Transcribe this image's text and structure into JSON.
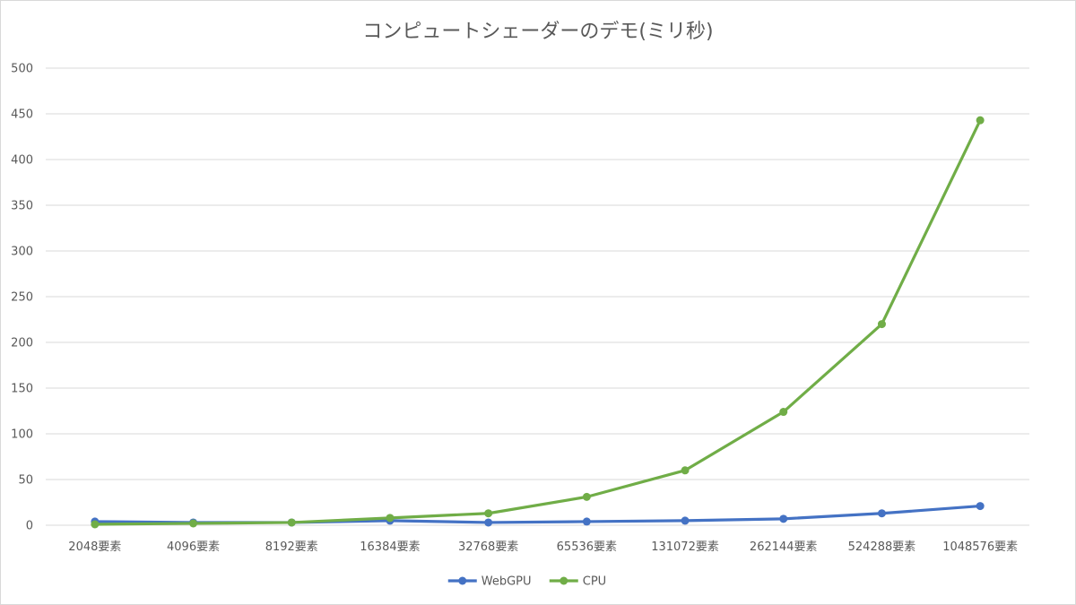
{
  "chart_data": {
    "type": "line",
    "title": "コンピュートシェーダーのデモ(ミリ秒)",
    "xlabel": "",
    "ylabel": "",
    "categories": [
      "2048要素",
      "4096要素",
      "8192要素",
      "16384要素",
      "32768要素",
      "65536要素",
      "131072要素",
      "262144要素",
      "524288要素",
      "1048576要素"
    ],
    "ylim": [
      0,
      500
    ],
    "yticks": [
      0,
      50,
      100,
      150,
      200,
      250,
      300,
      350,
      400,
      450,
      500
    ],
    "grid": true,
    "legend_position": "bottom",
    "series": [
      {
        "name": "WebGPU",
        "color": "#4472c4",
        "values": [
          4,
          3,
          3,
          5,
          3,
          4,
          5,
          7,
          13,
          21
        ]
      },
      {
        "name": "CPU",
        "color": "#70ad47",
        "values": [
          1,
          2,
          3,
          8,
          13,
          31,
          60,
          124,
          220,
          443
        ]
      }
    ]
  }
}
